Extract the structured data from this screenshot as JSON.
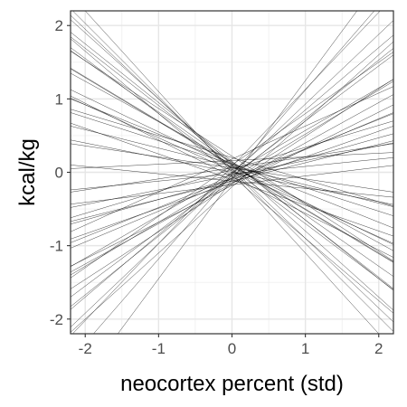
{
  "chart_data": {
    "type": "line",
    "title": "",
    "xlabel": "neocortex percent (std)",
    "ylabel": "kcal/kg",
    "xlim": [
      -2.2,
      2.2
    ],
    "ylim": [
      -2.2,
      2.2
    ],
    "xticks": [
      -2,
      -1,
      0,
      1,
      2
    ],
    "yticks": [
      -2,
      -1,
      0,
      1,
      2
    ],
    "x_tick_labels": [
      "-2",
      "-1",
      "0",
      "1",
      "2"
    ],
    "y_tick_labels": [
      "-2",
      "-1",
      "0",
      "1",
      "2"
    ],
    "grid": true,
    "legend": "none",
    "line_color": "#000000",
    "series": [
      {
        "intercept": 0.05,
        "slope": -0.95
      },
      {
        "intercept": -0.1,
        "slope": 1.35
      },
      {
        "intercept": 0.15,
        "slope": -0.8
      },
      {
        "intercept": -0.05,
        "slope": 0.75
      },
      {
        "intercept": 0.1,
        "slope": -0.6
      },
      {
        "intercept": -0.15,
        "slope": 0.55
      },
      {
        "intercept": 0.02,
        "slope": -0.45
      },
      {
        "intercept": -0.08,
        "slope": 0.4
      },
      {
        "intercept": 0.2,
        "slope": -0.3
      },
      {
        "intercept": -0.12,
        "slope": 0.25
      },
      {
        "intercept": 0.06,
        "slope": -0.15
      },
      {
        "intercept": -0.02,
        "slope": 0.1
      },
      {
        "intercept": 0.12,
        "slope": -0.7
      },
      {
        "intercept": -0.2,
        "slope": 0.9
      },
      {
        "intercept": 0.0,
        "slope": -1.1
      },
      {
        "intercept": 0.08,
        "slope": 1.05
      },
      {
        "intercept": -0.06,
        "slope": -0.5
      },
      {
        "intercept": 0.18,
        "slope": 0.45
      },
      {
        "intercept": -0.1,
        "slope": -0.35
      },
      {
        "intercept": 0.04,
        "slope": 0.3
      },
      {
        "intercept": 0.1,
        "slope": -0.9
      },
      {
        "intercept": -0.16,
        "slope": 0.65
      },
      {
        "intercept": 0.0,
        "slope": 0.85
      },
      {
        "intercept": 0.14,
        "slope": -0.55
      },
      {
        "intercept": -0.04,
        "slope": 0.2
      },
      {
        "intercept": 0.08,
        "slope": -0.25
      },
      {
        "intercept": -0.18,
        "slope": 0.5
      },
      {
        "intercept": 0.22,
        "slope": -0.65
      },
      {
        "intercept": -0.02,
        "slope": 0.95
      },
      {
        "intercept": 0.05,
        "slope": -0.75
      },
      {
        "intercept": -0.08,
        "slope": 0.6
      },
      {
        "intercept": 0.12,
        "slope": -0.4
      },
      {
        "intercept": -0.14,
        "slope": 0.35
      },
      {
        "intercept": 0.0,
        "slope": -0.2
      },
      {
        "intercept": 0.06,
        "slope": 0.15
      },
      {
        "intercept": -0.05,
        "slope": -0.85
      },
      {
        "intercept": 0.1,
        "slope": 0.7
      },
      {
        "intercept": -0.12,
        "slope": -0.1
      },
      {
        "intercept": 0.16,
        "slope": 0.05
      },
      {
        "intercept": -0.03,
        "slope": 1.15
      },
      {
        "intercept": 0.03,
        "slope": -1.0
      },
      {
        "intercept": -0.07,
        "slope": 0.8
      },
      {
        "intercept": 0.09,
        "slope": -0.6
      },
      {
        "intercept": -0.11,
        "slope": 0.42
      },
      {
        "intercept": 0.07,
        "slope": -0.48
      },
      {
        "intercept": -0.09,
        "slope": 0.28
      },
      {
        "intercept": 0.11,
        "slope": -0.32
      },
      {
        "intercept": -0.01,
        "slope": 0.58
      },
      {
        "intercept": 0.13,
        "slope": -0.78
      },
      {
        "intercept": -0.17,
        "slope": 0.12
      }
    ]
  }
}
